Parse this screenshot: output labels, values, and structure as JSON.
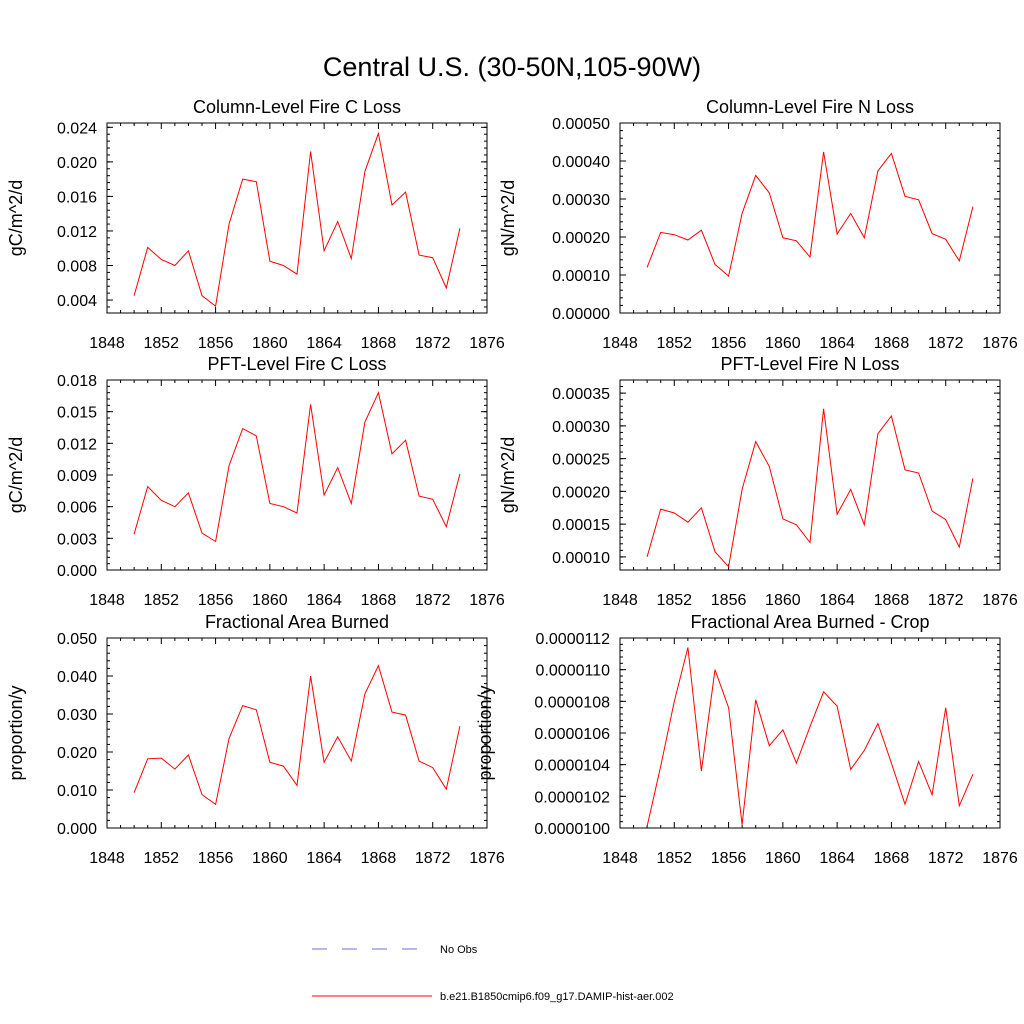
{
  "figure": {
    "title": "Central U.S. (30-50N,105-90W)"
  },
  "colors": {
    "model_line": "#ff0000",
    "obs_line": "#6f6fd8",
    "axes": "#000000"
  },
  "legend": [
    {
      "label": "No Obs",
      "style": "dashed",
      "color": "#6f6fd8"
    },
    {
      "label": "b.e21.B1850cmip6.f09_g17.DAMIP-hist-aer.002",
      "style": "solid",
      "color": "#ff0000"
    }
  ],
  "chart_data": [
    {
      "type": "line",
      "title": "Column-Level Fire C Loss",
      "ylabel": "gC/m^2/d",
      "xlim": [
        1848,
        1876
      ],
      "xticks": [
        "1848",
        "1852",
        "1856",
        "1860",
        "1864",
        "1868",
        "1872",
        "1876"
      ],
      "ylim": [
        0.0025,
        0.0245
      ],
      "yticks": [
        "0.004",
        "0.008",
        "0.012",
        "0.016",
        "0.020",
        "0.024"
      ],
      "x": [
        1850,
        1851,
        1852,
        1853,
        1854,
        1855,
        1856,
        1857,
        1858,
        1859,
        1860,
        1861,
        1862,
        1863,
        1864,
        1865,
        1866,
        1867,
        1868,
        1869,
        1870,
        1871,
        1872,
        1873,
        1874
      ],
      "series": [
        {
          "name": "b.e21.B1850cmip6.f09_g17.DAMIP-hist-aer.002",
          "values": [
            0.0045,
            0.0101,
            0.0087,
            0.008,
            0.0097,
            0.0045,
            0.0033,
            0.0128,
            0.018,
            0.0177,
            0.0085,
            0.008,
            0.007,
            0.0212,
            0.0097,
            0.0131,
            0.0088,
            0.0189,
            0.0233,
            0.015,
            0.0165,
            0.0092,
            0.0089,
            0.0054,
            0.0123
          ]
        }
      ]
    },
    {
      "type": "line",
      "title": "Column-Level Fire N Loss",
      "ylabel": "gN/m^2/d",
      "xlim": [
        1848,
        1876
      ],
      "xticks": [
        "1848",
        "1852",
        "1856",
        "1860",
        "1864",
        "1868",
        "1872",
        "1876"
      ],
      "ylim": [
        0.0,
        0.0005
      ],
      "yticks": [
        "0.00000",
        "0.00010",
        "0.00020",
        "0.00030",
        "0.00040",
        "0.00050"
      ],
      "x": [
        1850,
        1851,
        1852,
        1853,
        1854,
        1855,
        1856,
        1857,
        1858,
        1859,
        1860,
        1861,
        1862,
        1863,
        1864,
        1865,
        1866,
        1867,
        1868,
        1869,
        1870,
        1871,
        1872,
        1873,
        1874
      ],
      "series": [
        {
          "name": "b.e21.B1850cmip6.f09_g17.DAMIP-hist-aer.002",
          "values": [
            0.00012,
            0.000212,
            0.000206,
            0.000192,
            0.000218,
            0.000128,
            9.7e-05,
            0.000262,
            0.000362,
            0.000316,
            0.000198,
            0.00019,
            0.000147,
            0.000424,
            0.000208,
            0.000262,
            0.000198,
            0.000374,
            0.00042,
            0.000307,
            0.000298,
            0.000209,
            0.000194,
            0.000137,
            0.00028
          ]
        }
      ]
    },
    {
      "type": "line",
      "title": "PFT-Level Fire C Loss",
      "ylabel": "gC/m^2/d",
      "xlim": [
        1848,
        1876
      ],
      "xticks": [
        "1848",
        "1852",
        "1856",
        "1860",
        "1864",
        "1868",
        "1872",
        "1876"
      ],
      "ylim": [
        0.0,
        0.018
      ],
      "yticks": [
        "0.000",
        "0.003",
        "0.006",
        "0.009",
        "0.012",
        "0.015",
        "0.018"
      ],
      "x": [
        1850,
        1851,
        1852,
        1853,
        1854,
        1855,
        1856,
        1857,
        1858,
        1859,
        1860,
        1861,
        1862,
        1863,
        1864,
        1865,
        1866,
        1867,
        1868,
        1869,
        1870,
        1871,
        1872,
        1873,
        1874
      ],
      "series": [
        {
          "name": "b.e21.B1850cmip6.f09_g17.DAMIP-hist-aer.002",
          "values": [
            0.0034,
            0.0079,
            0.0066,
            0.006,
            0.0073,
            0.0035,
            0.0027,
            0.0099,
            0.0134,
            0.0127,
            0.0063,
            0.006,
            0.0054,
            0.0157,
            0.0071,
            0.0097,
            0.0063,
            0.014,
            0.0168,
            0.011,
            0.0123,
            0.007,
            0.0067,
            0.0041,
            0.0091
          ]
        }
      ]
    },
    {
      "type": "line",
      "title": "PFT-Level Fire N Loss",
      "ylabel": "gN/m^2/d",
      "xlim": [
        1848,
        1876
      ],
      "xticks": [
        "1848",
        "1852",
        "1856",
        "1860",
        "1864",
        "1868",
        "1872",
        "1876"
      ],
      "ylim": [
        8e-05,
        0.00037
      ],
      "yticks": [
        "0.00010",
        "0.00015",
        "0.00020",
        "0.00025",
        "0.00030",
        "0.00035"
      ],
      "x": [
        1850,
        1851,
        1852,
        1853,
        1854,
        1855,
        1856,
        1857,
        1858,
        1859,
        1860,
        1861,
        1862,
        1863,
        1864,
        1865,
        1866,
        1867,
        1868,
        1869,
        1870,
        1871,
        1872,
        1873,
        1874
      ],
      "series": [
        {
          "name": "b.e21.B1850cmip6.f09_g17.DAMIP-hist-aer.002",
          "values": [
            0.0001,
            0.000173,
            0.000167,
            0.000153,
            0.000175,
            0.000108,
            8.5e-05,
            0.000203,
            0.000276,
            0.000238,
            0.000158,
            0.000149,
            0.000122,
            0.000326,
            0.000165,
            0.000203,
            0.000149,
            0.000288,
            0.000315,
            0.000233,
            0.000228,
            0.00017,
            0.000157,
            0.000115,
            0.00022
          ]
        }
      ]
    },
    {
      "type": "line",
      "title": "Fractional Area Burned",
      "ylabel": "proportion/y",
      "xlim": [
        1848,
        1876
      ],
      "xticks": [
        "1848",
        "1852",
        "1856",
        "1860",
        "1864",
        "1868",
        "1872",
        "1876"
      ],
      "ylim": [
        0.0,
        0.05
      ],
      "yticks": [
        "0.000",
        "0.010",
        "0.020",
        "0.030",
        "0.040",
        "0.050"
      ],
      "x": [
        1850,
        1851,
        1852,
        1853,
        1854,
        1855,
        1856,
        1857,
        1858,
        1859,
        1860,
        1861,
        1862,
        1863,
        1864,
        1865,
        1866,
        1867,
        1868,
        1869,
        1870,
        1871,
        1872,
        1873,
        1874
      ],
      "series": [
        {
          "name": "b.e21.B1850cmip6.f09_g17.DAMIP-hist-aer.002",
          "values": [
            0.0093,
            0.0182,
            0.0184,
            0.0155,
            0.0192,
            0.0088,
            0.0062,
            0.0236,
            0.0322,
            0.0311,
            0.0173,
            0.0163,
            0.0112,
            0.04,
            0.0173,
            0.024,
            0.0176,
            0.0353,
            0.0427,
            0.0305,
            0.0297,
            0.0176,
            0.0159,
            0.0102,
            0.0268
          ]
        }
      ]
    },
    {
      "type": "line",
      "title": "Fractional Area Burned - Crop",
      "ylabel": "proportion/y",
      "xlim": [
        1848,
        1876
      ],
      "xticks": [
        "1848",
        "1852",
        "1856",
        "1860",
        "1864",
        "1868",
        "1872",
        "1876"
      ],
      "ylim": [
        1e-05,
        1.12e-05
      ],
      "yticks": [
        "0.0000100",
        "0.0000102",
        "0.0000104",
        "0.0000106",
        "0.0000108",
        "0.0000110",
        "0.0000112"
      ],
      "x": [
        1850,
        1851,
        1852,
        1853,
        1854,
        1855,
        1856,
        1857,
        1858,
        1859,
        1860,
        1861,
        1862,
        1863,
        1864,
        1865,
        1866,
        1867,
        1868,
        1869,
        1870,
        1871,
        1872,
        1873,
        1874
      ],
      "series": [
        {
          "name": "b.e21.B1850cmip6.f09_g17.DAMIP-hist-aer.002",
          "values": [
            1.001e-05,
            1.039e-05,
            1.08e-05,
            1.114e-05,
            1.036e-05,
            1.1e-05,
            1.076e-05,
            1.002e-05,
            1.081e-05,
            1.052e-05,
            1.062e-05,
            1.041e-05,
            1.064e-05,
            1.086e-05,
            1.077e-05,
            1.037e-05,
            1.049e-05,
            1.066e-05,
            1.041e-05,
            1.015e-05,
            1.042e-05,
            1.021e-05,
            1.076e-05,
            1.014e-05,
            1.034e-05
          ]
        }
      ]
    }
  ]
}
